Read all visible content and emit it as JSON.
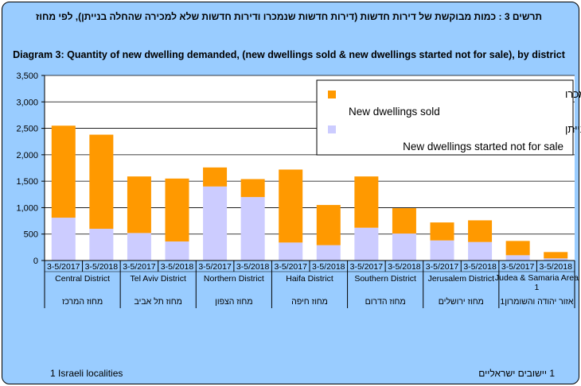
{
  "heb_title": "תרשים 3 : כמות מבוקשת של דירות חדשות (דירות חדשות שנמכרו ודירות חדשות שלא למכירה שהחלה בנייתן), לפי מחוז",
  "eng_title": "Diagram 3:  Quantity of new dwelling demanded, (new dwellings sold & new dwellings started not for sale), by district",
  "footnote_en": "1 Israeli localities",
  "footnote_he": "1 יישובים  ישראליים",
  "colors": {
    "sold": "#ff9900",
    "started": "#ccccff",
    "background": "#99ccff"
  },
  "chart_data": {
    "type": "bar",
    "stacked": true,
    "title": "Diagram 3:  Quantity of new dwelling demanded, (new dwellings sold & new dwellings started not for sale), by district",
    "ylim": [
      0,
      3500
    ],
    "yticks": [
      "0",
      "500",
      "1,000",
      "1,500",
      "2,000",
      "2,500",
      "3,000",
      "3,500"
    ],
    "ytick_values": [
      0,
      500,
      1000,
      1500,
      2000,
      2500,
      3000,
      3500
    ],
    "grid": true,
    "legend_position": "top-right",
    "categories": [
      "3-5/2017",
      "3-5/2018",
      "3-5/2017",
      "3-5/2018",
      "3-5/2017",
      "3-5/2018",
      "3-5/2017",
      "3-5/2018",
      "3-5/2017",
      "3-5/2018",
      "3-5/2017",
      "3-5/2018",
      "3-5/2017",
      "3-5/2018"
    ],
    "groups": [
      {
        "en": "Central District",
        "he": "מחוז המרכז"
      },
      {
        "en": "Tel Aviv District",
        "he": "מחוז תל אביב"
      },
      {
        "en": "Northern District",
        "he": "מחוז הצפון"
      },
      {
        "en": "Haifa District",
        "he": "מחוז חיפה"
      },
      {
        "en": "Southern District",
        "he": "מחוז הדרום"
      },
      {
        "en": "Jerusalem District",
        "he": "מחוז ירושלים"
      },
      {
        "en": "Judea & Samaria Area 1",
        "he": "אזור יהודה והשומרון1"
      }
    ],
    "series": [
      {
        "name": "דירות חדשות שלא למכירה שהחלה בנייתן",
        "name_en": "New dwellings started not for sale",
        "values": [
          810,
          600,
          520,
          360,
          1400,
          1200,
          340,
          290,
          620,
          510,
          380,
          350,
          100,
          40
        ]
      },
      {
        "name": "דירות חדשות שנמכרו",
        "name_en": "New dwellings sold",
        "values": [
          1740,
          1780,
          1070,
          1190,
          360,
          340,
          1380,
          760,
          970,
          480,
          340,
          410,
          270,
          120
        ]
      }
    ]
  }
}
